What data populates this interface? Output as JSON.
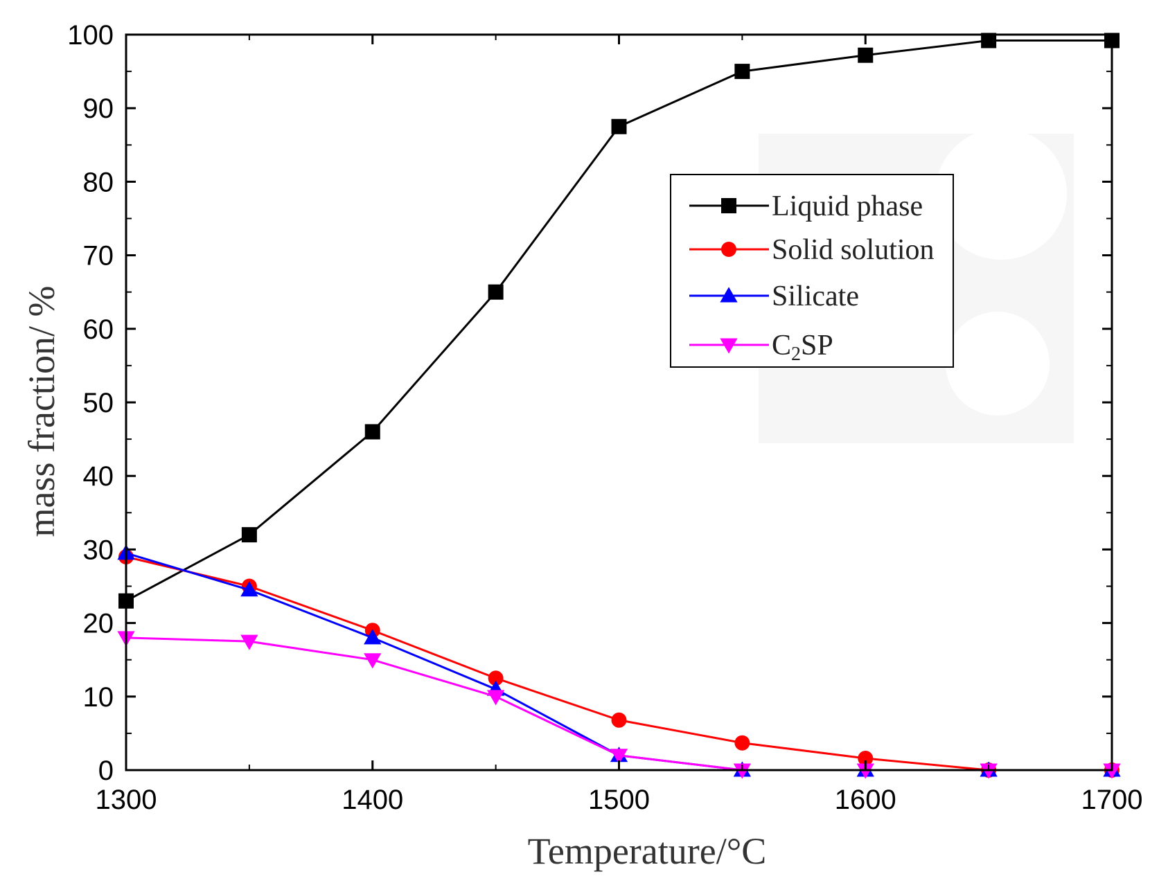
{
  "chart_data": {
    "type": "line",
    "title": "",
    "xlabel": "Temperature/°C",
    "ylabel": "mass fraction/ %",
    "xlim": [
      1300,
      1700
    ],
    "ylim": [
      0,
      100
    ],
    "xticks": [
      1300,
      1400,
      1500,
      1600,
      1700
    ],
    "yticks": [
      0,
      10,
      20,
      30,
      40,
      50,
      60,
      70,
      80,
      90,
      100
    ],
    "x": [
      1300,
      1350,
      1400,
      1450,
      1500,
      1550,
      1600,
      1650,
      1700
    ],
    "legend_position": "top-right",
    "series": [
      {
        "name": "Liquid phase",
        "legend_label": "Liquid phase",
        "color": "#000000",
        "marker": "square",
        "values": [
          23,
          32,
          46,
          65,
          87.5,
          95,
          97.2,
          99.2,
          99.2
        ]
      },
      {
        "name": "Solid solution",
        "legend_label": "Solid solution",
        "color": "#ff0000",
        "marker": "circle",
        "values": [
          29,
          25,
          19,
          12.5,
          6.8,
          3.7,
          1.6,
          0,
          0
        ]
      },
      {
        "name": "Silicate",
        "legend_label": "Silicate",
        "color": "#0000ff",
        "marker": "triangle-up",
        "values": [
          29.5,
          24.5,
          18,
          11,
          2,
          0,
          0,
          0,
          0
        ]
      },
      {
        "name": "C2SP",
        "legend_label": "C",
        "legend_sub": "2",
        "legend_suffix": "SP",
        "color": "#ff00ff",
        "marker": "triangle-down",
        "values": [
          18,
          17.5,
          15,
          10,
          2,
          0,
          0,
          0,
          0
        ]
      }
    ]
  }
}
